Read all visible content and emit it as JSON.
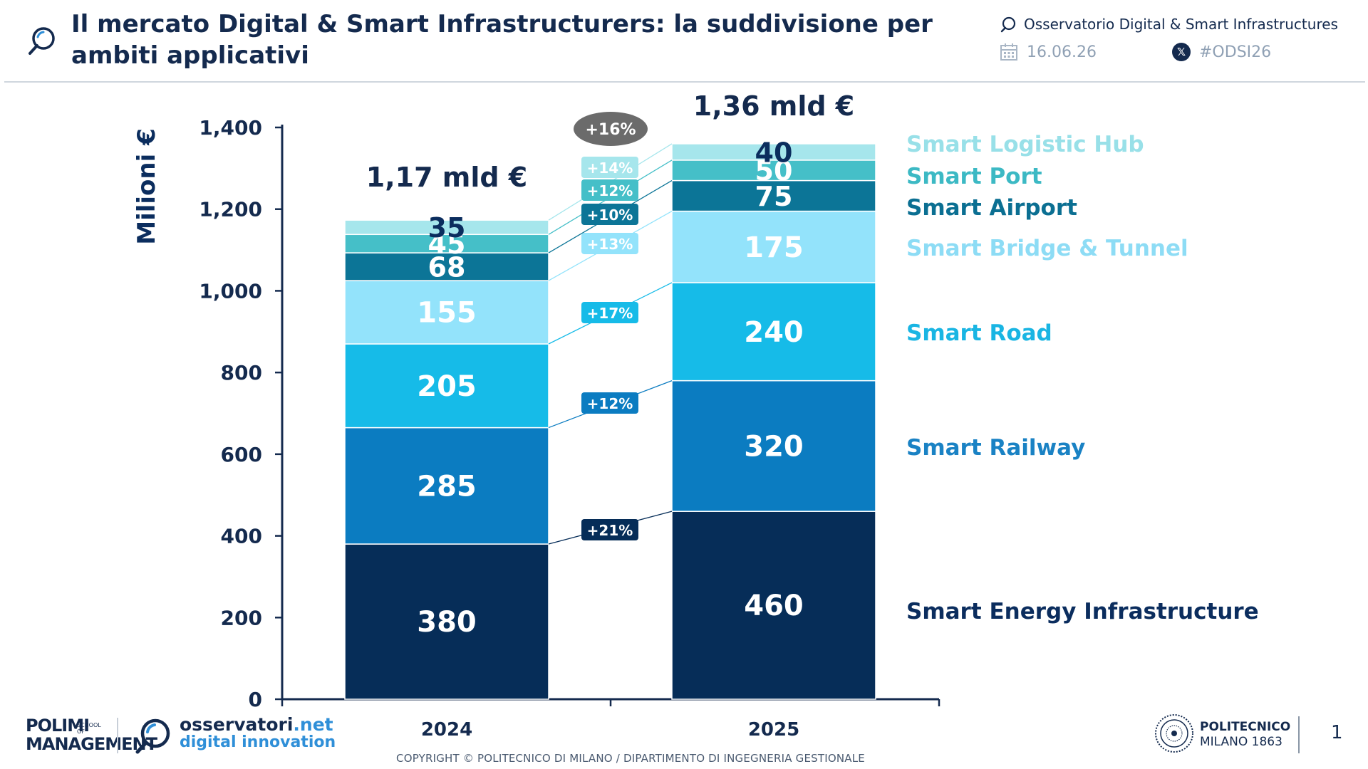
{
  "header": {
    "title": "Il mercato Digital & Smart Infrastructurers: la suddivisione per ambiti applicativi",
    "observatory": "Osservatorio Digital & Smart Infrastructures",
    "date": "16.06.26",
    "hashtag": "#ODSI26",
    "icons": [
      "search-icon",
      "chat-bubble-icon",
      "calendar-icon",
      "x-logo-icon"
    ]
  },
  "chart_data": {
    "type": "bar",
    "stacked": true,
    "categories": [
      "2024",
      "2025"
    ],
    "ylabel": "Milioni €",
    "ylim": [
      0,
      1400
    ],
    "yticks": [
      "0",
      "200",
      "400",
      "600",
      "800",
      "1,000",
      "1,200",
      "1,400"
    ],
    "totals": [
      "1,17 mld €",
      "1,36 mld €"
    ],
    "total_growth": "+16%",
    "series": [
      {
        "name": "Smart Energy Infrastructure",
        "values": [
          380,
          460
        ],
        "labels": [
          "380",
          "460"
        ],
        "growth": "+21%",
        "color": "#062d58",
        "label_color": "#0b2d5e",
        "value_text_color": "#ffffff",
        "badge_color": "#062d58"
      },
      {
        "name": "Smart Railway",
        "values": [
          285,
          320
        ],
        "labels": [
          "285",
          "320"
        ],
        "growth": "+12%",
        "color": "#0b7cc1",
        "label_color": "#1a82c4",
        "value_text_color": "#ffffff",
        "badge_color": "#0b7cc1"
      },
      {
        "name": "Smart Road",
        "values": [
          205,
          240
        ],
        "labels": [
          "205",
          "240"
        ],
        "growth": "+17%",
        "color": "#16bbe8",
        "label_color": "#19b5e3",
        "value_text_color": "#ffffff",
        "badge_color": "#16bbe8"
      },
      {
        "name": "Smart Bridge & Tunnel",
        "values": [
          155,
          175
        ],
        "labels": [
          "155",
          "175"
        ],
        "growth": "+13%",
        "color": "#93e3fb",
        "label_color": "#8ddcf5",
        "value_text_color": "#ffffff",
        "badge_color": "#93e3fb"
      },
      {
        "name": "Smart Airport",
        "values": [
          68,
          75
        ],
        "labels": [
          "68",
          "75"
        ],
        "growth": "+10%",
        "color": "#0c7597",
        "label_color": "#0b6f92",
        "value_text_color": "#ffffff",
        "badge_color": "#0c7597"
      },
      {
        "name": "Smart Port",
        "values": [
          45,
          50
        ],
        "labels": [
          "45",
          "50"
        ],
        "growth": "+12%",
        "color": "#45bfc8",
        "label_color": "#3cb9c4",
        "value_text_color": "#ffffff",
        "badge_color": "#45bfc8"
      },
      {
        "name": "Smart Logistic Hub",
        "values": [
          35,
          40
        ],
        "labels": [
          "35",
          "40"
        ],
        "growth": "+14%",
        "color": "#a6e6ec",
        "label_color": "#98e0e8",
        "value_text_color": "#0b2d5e",
        "badge_color": "#a6e6ec"
      }
    ],
    "grid": false,
    "legend_placement": "right"
  },
  "footer": {
    "polimi_big": "POLIMI",
    "polimi_big2": "MANAGEMENT",
    "polimi_small": "SCHOOL OF",
    "osservatori_name": "osservatori",
    "osservatori_tld": ".net",
    "osservatori_sub": "digital innovation",
    "copyright": "COPYRIGHT © POLITECNICO DI MILANO / DIPARTIMENTO DI INGEGNERIA GESTIONALE",
    "politecnico_line1": "POLITECNICO",
    "politecnico_line2": "MILANO 1863",
    "page_number": "1"
  }
}
